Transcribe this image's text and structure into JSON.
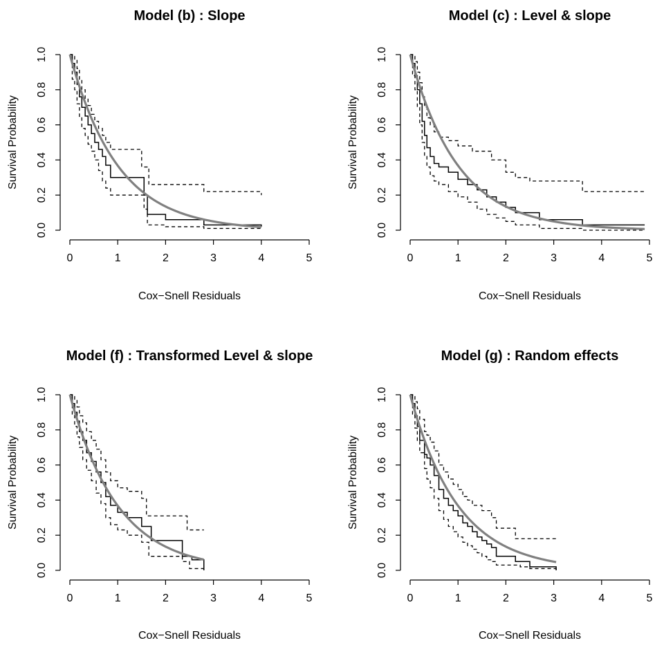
{
  "chart_data": [
    {
      "type": "line",
      "title": "Model (b) : Slope",
      "xlabel": "Cox−Snell Residuals",
      "ylabel": "Survival Probability",
      "xlim": [
        0,
        5
      ],
      "ylim": [
        0,
        1
      ],
      "xticks": [
        "0",
        "1",
        "2",
        "3",
        "4",
        "5"
      ],
      "yticks": [
        "0.0",
        "0.2",
        "0.4",
        "0.6",
        "0.8",
        "1.0"
      ],
      "grid": false,
      "series": [
        {
          "style": "step-solid",
          "x": [
            0,
            0.05,
            0.1,
            0.15,
            0.2,
            0.25,
            0.32,
            0.38,
            0.45,
            0.52,
            0.6,
            0.68,
            0.75,
            0.85,
            1.4,
            1.55,
            1.62,
            2.0,
            2.8,
            4.0
          ],
          "y": [
            1.0,
            0.95,
            0.9,
            0.83,
            0.76,
            0.7,
            0.65,
            0.6,
            0.55,
            0.5,
            0.46,
            0.42,
            0.37,
            0.3,
            0.3,
            0.2,
            0.09,
            0.06,
            0.03,
            0.02
          ]
        },
        {
          "style": "step-dashed",
          "x": [
            0,
            0.05,
            0.1,
            0.15,
            0.2,
            0.25,
            0.32,
            0.38,
            0.45,
            0.52,
            0.6,
            0.68,
            0.75,
            0.85,
            1.4,
            1.5,
            1.65,
            2.8,
            4.0
          ],
          "y": [
            1.0,
            0.99,
            0.97,
            0.92,
            0.86,
            0.8,
            0.75,
            0.71,
            0.66,
            0.62,
            0.58,
            0.54,
            0.5,
            0.46,
            0.46,
            0.36,
            0.26,
            0.22,
            0.2
          ]
        },
        {
          "style": "step-dashed",
          "x": [
            0,
            0.05,
            0.1,
            0.15,
            0.2,
            0.25,
            0.32,
            0.38,
            0.45,
            0.52,
            0.6,
            0.68,
            0.75,
            0.85,
            1.4,
            1.55,
            1.62,
            2.0,
            2.8,
            4.0
          ],
          "y": [
            1.0,
            0.86,
            0.8,
            0.72,
            0.64,
            0.58,
            0.54,
            0.49,
            0.45,
            0.4,
            0.34,
            0.28,
            0.24,
            0.2,
            0.2,
            0.12,
            0.03,
            0.02,
            0.01,
            0.01
          ]
        },
        {
          "style": "exp-curve",
          "x": [
            0,
            0.5,
            1.0,
            1.5,
            2.0,
            2.5,
            3.0,
            3.5,
            4.0
          ],
          "y": [
            1.0,
            0.607,
            0.368,
            0.223,
            0.135,
            0.082,
            0.05,
            0.03,
            0.018
          ]
        }
      ]
    },
    {
      "type": "line",
      "title": "Model (c) : Level & slope",
      "xlabel": "Cox−Snell Residuals",
      "ylabel": "Survival Probability",
      "xlim": [
        0,
        5
      ],
      "ylim": [
        0,
        1
      ],
      "xticks": [
        "0",
        "1",
        "2",
        "3",
        "4",
        "5"
      ],
      "yticks": [
        "0.0",
        "0.2",
        "0.4",
        "0.6",
        "0.8",
        "1.0"
      ],
      "grid": false,
      "series": [
        {
          "style": "step-solid",
          "x": [
            0,
            0.05,
            0.1,
            0.15,
            0.2,
            0.25,
            0.3,
            0.35,
            0.42,
            0.5,
            0.6,
            0.8,
            1.0,
            1.2,
            1.4,
            1.6,
            1.8,
            2.0,
            2.2,
            2.7,
            3.6,
            4.9
          ],
          "y": [
            1.0,
            0.95,
            0.88,
            0.8,
            0.72,
            0.62,
            0.54,
            0.47,
            0.42,
            0.38,
            0.36,
            0.33,
            0.29,
            0.26,
            0.23,
            0.19,
            0.16,
            0.13,
            0.1,
            0.06,
            0.03,
            0.03
          ]
        },
        {
          "style": "step-dashed",
          "x": [
            0,
            0.05,
            0.1,
            0.15,
            0.2,
            0.25,
            0.3,
            0.35,
            0.42,
            0.5,
            0.6,
            0.8,
            1.0,
            1.3,
            1.7,
            2.0,
            2.2,
            2.5,
            3.6,
            4.9
          ],
          "y": [
            1.0,
            0.99,
            0.96,
            0.9,
            0.84,
            0.77,
            0.7,
            0.64,
            0.6,
            0.56,
            0.53,
            0.51,
            0.48,
            0.45,
            0.4,
            0.33,
            0.3,
            0.28,
            0.22,
            0.22
          ]
        },
        {
          "style": "step-dashed",
          "x": [
            0,
            0.05,
            0.1,
            0.15,
            0.2,
            0.25,
            0.3,
            0.35,
            0.42,
            0.5,
            0.6,
            0.8,
            1.0,
            1.2,
            1.4,
            1.6,
            1.8,
            2.0,
            2.2,
            2.7,
            3.6,
            4.9
          ],
          "y": [
            1.0,
            0.88,
            0.8,
            0.7,
            0.6,
            0.5,
            0.42,
            0.36,
            0.31,
            0.28,
            0.26,
            0.22,
            0.19,
            0.16,
            0.12,
            0.09,
            0.07,
            0.05,
            0.03,
            0.01,
            0.0,
            0.0
          ]
        },
        {
          "style": "exp-curve",
          "x": [
            0,
            0.5,
            1.0,
            1.5,
            2.0,
            2.5,
            3.0,
            3.5,
            4.0,
            4.5,
            4.9
          ],
          "y": [
            1.0,
            0.607,
            0.368,
            0.223,
            0.135,
            0.082,
            0.05,
            0.03,
            0.018,
            0.011,
            0.007
          ]
        }
      ]
    },
    {
      "type": "line",
      "title": "Model (f) : Transformed Level & slope",
      "xlabel": "Cox−Snell Residuals",
      "ylabel": "Survival Probability",
      "xlim": [
        0,
        5
      ],
      "ylim": [
        0,
        1
      ],
      "xticks": [
        "0",
        "1",
        "2",
        "3",
        "4",
        "5"
      ],
      "yticks": [
        "0.0",
        "0.2",
        "0.4",
        "0.6",
        "0.8",
        "1.0"
      ],
      "grid": false,
      "series": [
        {
          "style": "step-solid",
          "x": [
            0,
            0.05,
            0.1,
            0.15,
            0.2,
            0.27,
            0.35,
            0.45,
            0.55,
            0.65,
            0.75,
            0.85,
            1.0,
            1.2,
            1.5,
            1.7,
            2.35,
            2.55,
            2.8
          ],
          "y": [
            1.0,
            0.95,
            0.9,
            0.85,
            0.79,
            0.74,
            0.67,
            0.62,
            0.56,
            0.5,
            0.42,
            0.37,
            0.33,
            0.3,
            0.25,
            0.17,
            0.08,
            0.06,
            0.0
          ]
        },
        {
          "style": "step-dashed",
          "x": [
            0,
            0.05,
            0.1,
            0.15,
            0.2,
            0.27,
            0.35,
            0.45,
            0.55,
            0.65,
            0.75,
            0.85,
            1.0,
            1.2,
            1.5,
            1.6,
            2.35,
            2.45,
            2.8
          ],
          "y": [
            1.0,
            0.99,
            0.97,
            0.93,
            0.88,
            0.84,
            0.79,
            0.74,
            0.69,
            0.63,
            0.56,
            0.51,
            0.47,
            0.45,
            0.41,
            0.31,
            0.31,
            0.23,
            0.23
          ]
        },
        {
          "style": "step-dashed",
          "x": [
            0,
            0.05,
            0.1,
            0.15,
            0.2,
            0.27,
            0.35,
            0.45,
            0.55,
            0.65,
            0.75,
            0.85,
            1.0,
            1.2,
            1.5,
            1.65,
            2.35,
            2.5,
            2.8
          ],
          "y": [
            1.0,
            0.89,
            0.82,
            0.76,
            0.7,
            0.63,
            0.57,
            0.51,
            0.44,
            0.38,
            0.3,
            0.26,
            0.23,
            0.2,
            0.16,
            0.08,
            0.05,
            0.01,
            0.0
          ]
        },
        {
          "style": "exp-curve",
          "x": [
            0,
            0.5,
            1.0,
            1.5,
            2.0,
            2.5,
            2.8
          ],
          "y": [
            1.0,
            0.607,
            0.368,
            0.223,
            0.135,
            0.082,
            0.061
          ]
        }
      ]
    },
    {
      "type": "line",
      "title": "Model (g) : Random effects",
      "xlabel": "Cox−Snell Residuals",
      "ylabel": "Survival Probability",
      "xlim": [
        0,
        5
      ],
      "ylim": [
        0,
        1
      ],
      "xticks": [
        "0",
        "1",
        "2",
        "3",
        "4",
        "5"
      ],
      "yticks": [
        "0.0",
        "0.2",
        "0.4",
        "0.6",
        "0.8",
        "1.0"
      ],
      "grid": false,
      "series": [
        {
          "style": "step-solid",
          "x": [
            0,
            0.05,
            0.1,
            0.15,
            0.2,
            0.3,
            0.35,
            0.42,
            0.5,
            0.6,
            0.7,
            0.8,
            0.9,
            1.0,
            1.1,
            1.2,
            1.3,
            1.4,
            1.5,
            1.6,
            1.7,
            1.8,
            2.2,
            2.5,
            3.05
          ],
          "y": [
            1.0,
            0.95,
            0.88,
            0.82,
            0.74,
            0.66,
            0.64,
            0.6,
            0.54,
            0.46,
            0.41,
            0.37,
            0.34,
            0.31,
            0.27,
            0.25,
            0.22,
            0.19,
            0.17,
            0.15,
            0.13,
            0.08,
            0.05,
            0.02,
            0.0
          ]
        },
        {
          "style": "step-dashed",
          "x": [
            0,
            0.05,
            0.1,
            0.15,
            0.2,
            0.3,
            0.35,
            0.42,
            0.5,
            0.6,
            0.7,
            0.8,
            0.9,
            1.0,
            1.1,
            1.2,
            1.3,
            1.5,
            1.7,
            1.8,
            2.2,
            3.05
          ],
          "y": [
            1.0,
            0.99,
            0.96,
            0.92,
            0.86,
            0.79,
            0.77,
            0.73,
            0.68,
            0.6,
            0.56,
            0.52,
            0.49,
            0.46,
            0.42,
            0.4,
            0.37,
            0.34,
            0.3,
            0.24,
            0.18,
            0.18
          ]
        },
        {
          "style": "step-dashed",
          "x": [
            0,
            0.05,
            0.1,
            0.15,
            0.2,
            0.3,
            0.35,
            0.42,
            0.5,
            0.6,
            0.7,
            0.8,
            0.9,
            1.0,
            1.1,
            1.2,
            1.3,
            1.4,
            1.5,
            1.6,
            1.7,
            1.8,
            2.3,
            2.5,
            3.05
          ],
          "y": [
            1.0,
            0.89,
            0.81,
            0.74,
            0.67,
            0.58,
            0.52,
            0.47,
            0.41,
            0.34,
            0.29,
            0.25,
            0.22,
            0.19,
            0.16,
            0.14,
            0.12,
            0.1,
            0.08,
            0.06,
            0.05,
            0.03,
            0.02,
            0.01,
            0.0
          ]
        },
        {
          "style": "exp-curve",
          "x": [
            0,
            0.5,
            1.0,
            1.5,
            2.0,
            2.5,
            3.05
          ],
          "y": [
            1.0,
            0.607,
            0.368,
            0.223,
            0.135,
            0.082,
            0.047
          ]
        }
      ]
    }
  ]
}
